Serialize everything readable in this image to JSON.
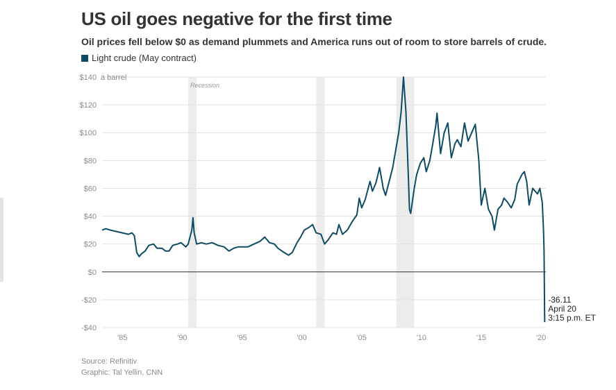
{
  "title": "US oil goes negative for the first time",
  "subtitle": "Oil prices fell below $0 as demand plummets and America runs out of room to store barrels of crude.",
  "legend": {
    "label": "Light crude (May contract)",
    "color": "#0d4a63"
  },
  "source": "Source: Refinitiv",
  "graphic": "Graphic: Tal Yellin, CNN",
  "recession_label": "Recession",
  "unit_label": "a barrel",
  "annotation": {
    "value": "-36.11",
    "date": "April 20",
    "time": "3:15 p.m. ET"
  },
  "colors": {
    "line": "#0d4a63",
    "recession": "#ececec",
    "grid": "#e2e2e2",
    "zero_line": "#555555"
  },
  "chart_data": {
    "type": "line",
    "xlim": [
      1983.3,
      2020.4
    ],
    "ylim": [
      -40,
      140
    ],
    "y_ticks": [
      -40,
      -20,
      0,
      20,
      40,
      60,
      80,
      100,
      120,
      140
    ],
    "y_tick_labels": [
      "-$40",
      "-$20",
      "$0",
      "$20",
      "$40",
      "$60",
      "$80",
      "$100",
      "$120",
      "$140"
    ],
    "x_ticks": [
      1985,
      1990,
      1995,
      2000,
      2005,
      2010,
      2015,
      2020
    ],
    "x_tick_labels": [
      "'85",
      "'90",
      "'95",
      "'00",
      "'05",
      "'10",
      "'15",
      "'20"
    ],
    "grid": true,
    "recessions": [
      [
        1990.5,
        1991.2
      ],
      [
        2001.2,
        2001.9
      ],
      [
        2007.9,
        2009.4
      ]
    ],
    "series": [
      {
        "name": "Light crude (May contract)",
        "points": [
          [
            1983.3,
            30
          ],
          [
            1983.6,
            31
          ],
          [
            1984.0,
            30
          ],
          [
            1984.5,
            29
          ],
          [
            1985.0,
            28
          ],
          [
            1985.5,
            27
          ],
          [
            1985.8,
            28
          ],
          [
            1986.0,
            26
          ],
          [
            1986.2,
            14
          ],
          [
            1986.4,
            11
          ],
          [
            1986.6,
            13
          ],
          [
            1986.9,
            15
          ],
          [
            1987.2,
            19
          ],
          [
            1987.6,
            20
          ],
          [
            1987.9,
            17
          ],
          [
            1988.3,
            17
          ],
          [
            1988.6,
            15
          ],
          [
            1988.9,
            15
          ],
          [
            1989.2,
            19
          ],
          [
            1989.6,
            20
          ],
          [
            1989.9,
            21
          ],
          [
            1990.3,
            18
          ],
          [
            1990.5,
            20
          ],
          [
            1990.8,
            30
          ],
          [
            1990.9,
            39
          ],
          [
            1991.0,
            28
          ],
          [
            1991.2,
            20
          ],
          [
            1991.6,
            21
          ],
          [
            1992.0,
            20
          ],
          [
            1992.5,
            21
          ],
          [
            1993.0,
            19
          ],
          [
            1993.5,
            18
          ],
          [
            1993.9,
            15
          ],
          [
            1994.3,
            17
          ],
          [
            1994.7,
            18
          ],
          [
            1995.0,
            18
          ],
          [
            1995.5,
            18
          ],
          [
            1996.0,
            20
          ],
          [
            1996.5,
            22
          ],
          [
            1996.9,
            25
          ],
          [
            1997.3,
            21
          ],
          [
            1997.7,
            20
          ],
          [
            1998.0,
            17
          ],
          [
            1998.5,
            14
          ],
          [
            1998.9,
            12
          ],
          [
            1999.2,
            14
          ],
          [
            1999.6,
            21
          ],
          [
            1999.9,
            25
          ],
          [
            2000.2,
            30
          ],
          [
            2000.6,
            32
          ],
          [
            2000.9,
            34
          ],
          [
            2001.2,
            28
          ],
          [
            2001.6,
            27
          ],
          [
            2001.9,
            20
          ],
          [
            2002.2,
            23
          ],
          [
            2002.6,
            28
          ],
          [
            2002.9,
            27
          ],
          [
            2003.1,
            34
          ],
          [
            2003.4,
            27
          ],
          [
            2003.8,
            30
          ],
          [
            2004.2,
            36
          ],
          [
            2004.6,
            41
          ],
          [
            2004.8,
            53
          ],
          [
            2005.0,
            46
          ],
          [
            2005.3,
            52
          ],
          [
            2005.7,
            65
          ],
          [
            2005.9,
            58
          ],
          [
            2006.2,
            64
          ],
          [
            2006.5,
            75
          ],
          [
            2006.8,
            60
          ],
          [
            2007.0,
            55
          ],
          [
            2007.3,
            65
          ],
          [
            2007.6,
            75
          ],
          [
            2007.9,
            90
          ],
          [
            2008.1,
            100
          ],
          [
            2008.3,
            115
          ],
          [
            2008.5,
            140
          ],
          [
            2008.7,
            115
          ],
          [
            2008.9,
            70
          ],
          [
            2009.0,
            45
          ],
          [
            2009.1,
            42
          ],
          [
            2009.4,
            60
          ],
          [
            2009.6,
            70
          ],
          [
            2009.9,
            78
          ],
          [
            2010.2,
            82
          ],
          [
            2010.4,
            72
          ],
          [
            2010.7,
            80
          ],
          [
            2010.9,
            90
          ],
          [
            2011.2,
            105
          ],
          [
            2011.3,
            114
          ],
          [
            2011.6,
            85
          ],
          [
            2011.9,
            100
          ],
          [
            2012.2,
            107
          ],
          [
            2012.5,
            82
          ],
          [
            2012.8,
            92
          ],
          [
            2013.0,
            95
          ],
          [
            2013.3,
            90
          ],
          [
            2013.6,
            107
          ],
          [
            2013.9,
            94
          ],
          [
            2014.2,
            100
          ],
          [
            2014.5,
            106
          ],
          [
            2014.8,
            80
          ],
          [
            2015.0,
            48
          ],
          [
            2015.3,
            60
          ],
          [
            2015.6,
            45
          ],
          [
            2015.9,
            40
          ],
          [
            2016.1,
            30
          ],
          [
            2016.4,
            45
          ],
          [
            2016.7,
            48
          ],
          [
            2016.9,
            53
          ],
          [
            2017.2,
            50
          ],
          [
            2017.5,
            46
          ],
          [
            2017.8,
            52
          ],
          [
            2018.0,
            63
          ],
          [
            2018.4,
            70
          ],
          [
            2018.6,
            72
          ],
          [
            2018.8,
            65
          ],
          [
            2019.0,
            48
          ],
          [
            2019.3,
            60
          ],
          [
            2019.5,
            58
          ],
          [
            2019.7,
            56
          ],
          [
            2019.9,
            60
          ],
          [
            2020.0,
            55
          ],
          [
            2020.1,
            50
          ],
          [
            2020.2,
            30
          ],
          [
            2020.25,
            15
          ],
          [
            2020.3,
            -36.11
          ]
        ]
      }
    ]
  }
}
